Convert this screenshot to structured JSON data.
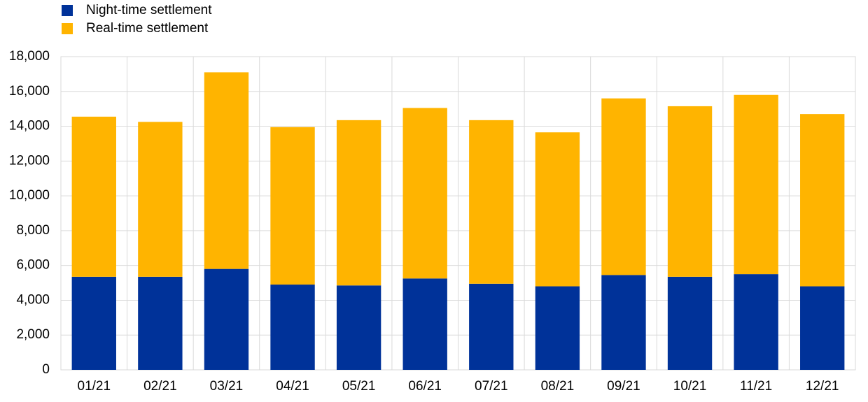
{
  "chart_data": {
    "type": "stacked_bar",
    "categories": [
      "01/21",
      "02/21",
      "03/21",
      "04/21",
      "05/21",
      "06/21",
      "07/21",
      "08/21",
      "09/21",
      "10/21",
      "11/21",
      "12/21"
    ],
    "series": [
      {
        "name": "Night-time settlement",
        "color": "#003299",
        "values": [
          5350,
          5350,
          5800,
          4900,
          4850,
          5250,
          4950,
          4800,
          5450,
          5350,
          5500,
          4800
        ]
      },
      {
        "name": "Real-time settlement",
        "color": "#ffb400",
        "values": [
          9200,
          8900,
          11300,
          9050,
          9500,
          9800,
          9400,
          8850,
          10150,
          9800,
          10300,
          9900
        ]
      }
    ],
    "ylim": [
      0,
      18000
    ],
    "yticks": [
      0,
      {
        "value": 2000,
        "label": "2,000"
      },
      {
        "value": 4000,
        "label": "4,000"
      },
      {
        "value": 6000,
        "label": "6,000"
      },
      {
        "value": 8000,
        "label": "8,000"
      },
      {
        "value": 10000,
        "label": "10,000"
      },
      {
        "value": 12000,
        "label": "12,000"
      },
      {
        "value": 14000,
        "label": "14,000"
      },
      {
        "value": 16000,
        "label": "16,000"
      },
      {
        "value": 18000,
        "label": "18,000"
      }
    ],
    "grid": true
  }
}
